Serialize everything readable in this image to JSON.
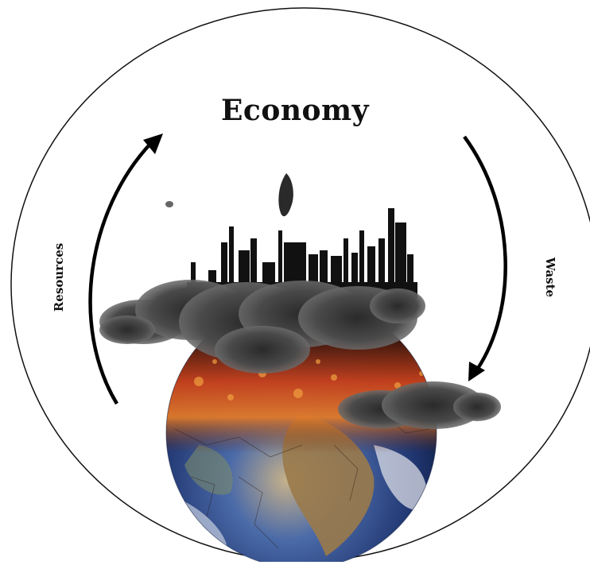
{
  "diagram": {
    "title": "Economy",
    "inflow_label": "Resources",
    "outflow_label": "Waste"
  },
  "colors": {
    "outline": "#111111",
    "arrow": "#000000",
    "smoke": "#3a3a3a",
    "fire": "#c8401a",
    "ocean": "#2a4a8a",
    "land": "#8a6a3a"
  },
  "icons": {
    "centerpiece": "polluted-earth-globe-icon",
    "skyline": "factory-skyline-icon"
  }
}
